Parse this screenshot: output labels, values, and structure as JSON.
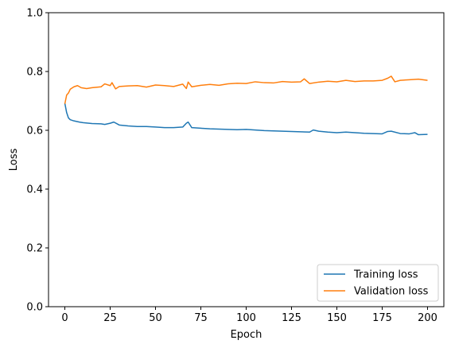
{
  "chart_data": {
    "type": "line",
    "title": "",
    "xlabel": "Epoch",
    "ylabel": "Loss",
    "xlim": [
      -9,
      209
    ],
    "ylim": [
      0.0,
      1.0
    ],
    "xticks": [
      0,
      25,
      50,
      75,
      100,
      125,
      150,
      175,
      200
    ],
    "yticks": [
      0.0,
      0.2,
      0.4,
      0.6,
      0.8,
      1.0
    ],
    "xtick_labels": [
      "0",
      "25",
      "50",
      "75",
      "100",
      "125",
      "150",
      "175",
      "200"
    ],
    "ytick_labels": [
      "0.0",
      "0.2",
      "0.4",
      "0.6",
      "0.8",
      "1.0"
    ],
    "grid": false,
    "legend_position": "lower-right",
    "series": [
      {
        "name": "Training loss",
        "color": "#1f77b4",
        "x": [
          0,
          1,
          2,
          3,
          5,
          8,
          10,
          15,
          20,
          22,
          25,
          27,
          30,
          35,
          40,
          45,
          50,
          55,
          60,
          65,
          67,
          68,
          70,
          75,
          80,
          85,
          90,
          95,
          100,
          105,
          110,
          115,
          120,
          125,
          130,
          135,
          137,
          140,
          145,
          150,
          155,
          160,
          165,
          170,
          175,
          178,
          180,
          185,
          190,
          193,
          195,
          200
        ],
        "values": [
          0.692,
          0.66,
          0.642,
          0.636,
          0.632,
          0.628,
          0.626,
          0.623,
          0.622,
          0.62,
          0.624,
          0.628,
          0.618,
          0.615,
          0.613,
          0.613,
          0.611,
          0.609,
          0.609,
          0.611,
          0.624,
          0.628,
          0.609,
          0.607,
          0.605,
          0.604,
          0.603,
          0.602,
          0.603,
          0.601,
          0.599,
          0.598,
          0.597,
          0.596,
          0.595,
          0.594,
          0.601,
          0.597,
          0.594,
          0.592,
          0.594,
          0.592,
          0.59,
          0.589,
          0.588,
          0.596,
          0.597,
          0.589,
          0.588,
          0.592,
          0.585,
          0.586
        ]
      },
      {
        "name": "Validation loss",
        "color": "#ff7f0e",
        "x": [
          0,
          1,
          2,
          3,
          5,
          7,
          9,
          12,
          15,
          20,
          22,
          25,
          26,
          28,
          30,
          35,
          40,
          45,
          50,
          55,
          60,
          65,
          67,
          68,
          70,
          75,
          80,
          85,
          90,
          95,
          100,
          105,
          110,
          115,
          120,
          125,
          130,
          132,
          135,
          140,
          145,
          150,
          155,
          160,
          165,
          170,
          175,
          178,
          180,
          182,
          185,
          190,
          195,
          200
        ],
        "values": [
          0.69,
          0.72,
          0.727,
          0.74,
          0.748,
          0.752,
          0.745,
          0.742,
          0.745,
          0.748,
          0.758,
          0.752,
          0.762,
          0.741,
          0.749,
          0.751,
          0.752,
          0.747,
          0.754,
          0.752,
          0.749,
          0.757,
          0.742,
          0.764,
          0.748,
          0.753,
          0.756,
          0.753,
          0.758,
          0.76,
          0.759,
          0.765,
          0.762,
          0.761,
          0.766,
          0.764,
          0.765,
          0.775,
          0.759,
          0.764,
          0.767,
          0.765,
          0.77,
          0.766,
          0.768,
          0.768,
          0.77,
          0.777,
          0.784,
          0.765,
          0.77,
          0.772,
          0.774,
          0.77
        ]
      }
    ]
  }
}
